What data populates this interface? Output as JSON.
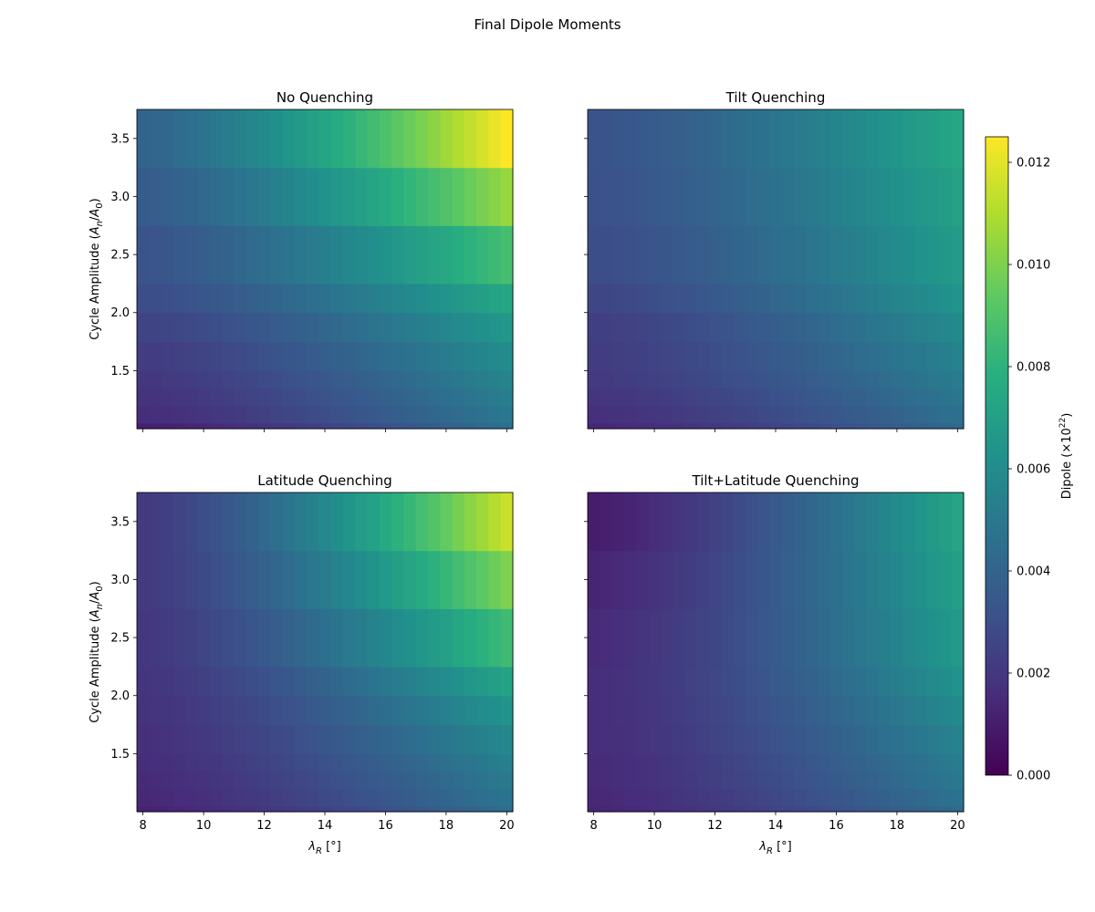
{
  "figure_title": "Final Dipole Moments",
  "chart_data": {
    "type": "heatmap",
    "title": "Final Dipole Moments",
    "x_label": "λ_R [°]",
    "y_label": "Cycle Amplitude (A_n/A_0)",
    "x_ticks": [
      8,
      10,
      12,
      14,
      16,
      18,
      20
    ],
    "y_ticks": [
      1.5,
      2.0,
      2.5,
      3.0,
      3.5
    ],
    "x_range": [
      7.8,
      20.2
    ],
    "y_range": [
      1.0,
      3.75
    ],
    "x_centers": [
      8.0,
      8.4,
      8.8,
      9.2,
      9.6,
      10.0,
      10.4,
      10.8,
      11.2,
      11.6,
      12.0,
      12.4,
      12.8,
      13.2,
      13.6,
      14.0,
      14.4,
      14.8,
      15.2,
      15.6,
      16.0,
      16.4,
      16.8,
      17.2,
      17.6,
      18.0,
      18.4,
      18.8,
      19.2,
      19.6,
      20.0
    ],
    "y_rows": [
      {
        "bottom": 1.0,
        "top": 1.05
      },
      {
        "bottom": 1.05,
        "top": 1.2
      },
      {
        "bottom": 1.2,
        "top": 1.35
      },
      {
        "bottom": 1.35,
        "top": 1.5
      },
      {
        "bottom": 1.5,
        "top": 1.75
      },
      {
        "bottom": 1.75,
        "top": 2.0
      },
      {
        "bottom": 2.0,
        "top": 2.25
      },
      {
        "bottom": 2.25,
        "top": 2.75
      },
      {
        "bottom": 2.75,
        "top": 3.25
      },
      {
        "bottom": 3.25,
        "top": 3.75
      }
    ],
    "colorbar": {
      "label": "Dipole (×10^22)",
      "range": [
        0.0,
        0.0125
      ],
      "ticks": [
        "0.000",
        "0.002",
        "0.004",
        "0.006",
        "0.008",
        "0.010",
        "0.012"
      ],
      "colormap": "viridis"
    },
    "panels": [
      {
        "title": "No Quenching",
        "left": [
          0.0011,
          0.0016,
          0.0018,
          0.002,
          0.0022,
          0.0025,
          0.0029,
          0.0032,
          0.0036,
          0.004
        ],
        "right": [
          0.0045,
          0.005,
          0.0053,
          0.0056,
          0.006,
          0.0066,
          0.0074,
          0.0087,
          0.0105,
          0.0125
        ]
      },
      {
        "title": "Tilt Quenching",
        "left": [
          0.0014,
          0.0017,
          0.0019,
          0.0021,
          0.0022,
          0.0023,
          0.0026,
          0.0029,
          0.0031,
          0.0032
        ],
        "right": [
          0.0042,
          0.0046,
          0.0049,
          0.0052,
          0.0055,
          0.0059,
          0.0064,
          0.0068,
          0.0071,
          0.0074
        ]
      },
      {
        "title": "Latitude Quenching",
        "left": [
          0.0012,
          0.0014,
          0.0015,
          0.0016,
          0.0017,
          0.0018,
          0.0019,
          0.002,
          0.0021,
          0.0021
        ],
        "right": [
          0.0044,
          0.0048,
          0.0051,
          0.0054,
          0.0058,
          0.0064,
          0.0072,
          0.0085,
          0.01,
          0.0115
        ]
      },
      {
        "title": "Tilt+Latitude Quenching",
        "left": [
          0.0013,
          0.0014,
          0.0015,
          0.0015,
          0.0016,
          0.0016,
          0.0016,
          0.0015,
          0.0013,
          0.001
        ],
        "right": [
          0.0043,
          0.0047,
          0.005,
          0.0052,
          0.0055,
          0.0059,
          0.0063,
          0.0067,
          0.007,
          0.0073
        ]
      }
    ]
  }
}
